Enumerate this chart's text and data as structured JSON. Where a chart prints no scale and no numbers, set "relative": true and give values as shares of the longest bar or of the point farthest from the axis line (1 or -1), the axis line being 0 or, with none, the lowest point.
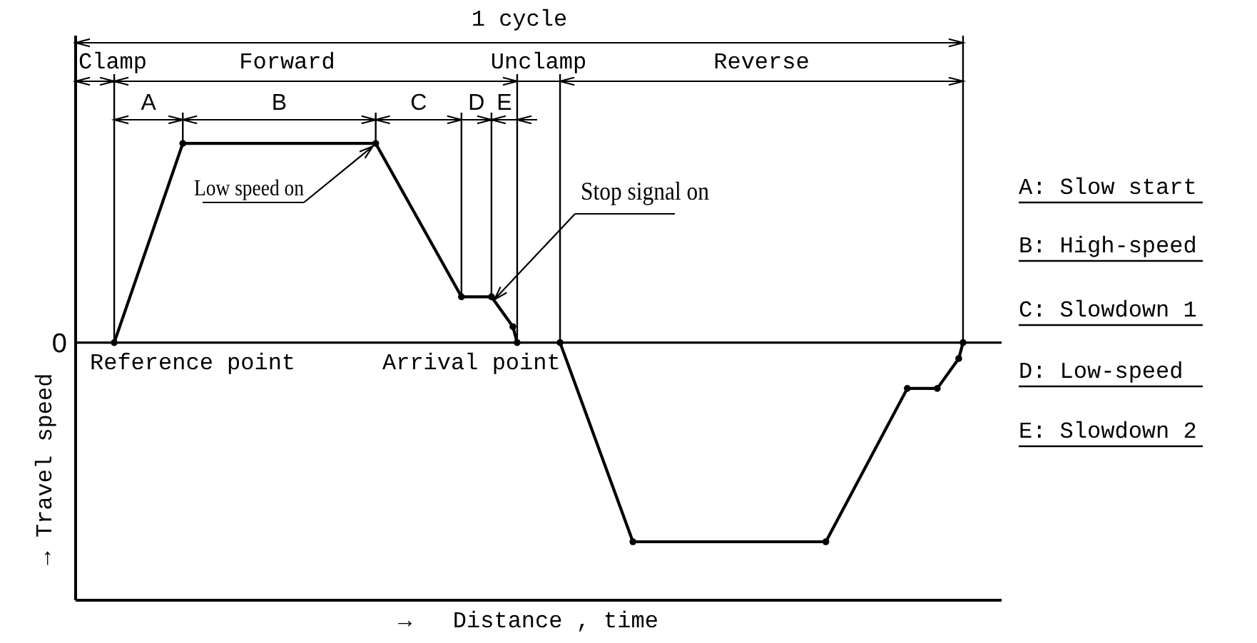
{
  "chart_data": {
    "type": "line",
    "relative": true,
    "marker": "circle",
    "line_style": "solid",
    "xlabel": "→   Distance , time",
    "ylabel": "→ Travel speed",
    "categories": [
      null,
      null,
      null,
      null,
      null,
      null,
      null,
      null,
      null,
      null,
      null,
      null,
      null,
      null,
      null,
      null,
      null,
      null,
      null,
      null,
      null,
      null,
      null,
      null,
      null,
      null,
      null,
      null,
      null,
      null,
      null,
      null,
      null,
      null,
      null,
      null,
      null,
      null,
      null,
      null,
      null,
      null,
      null,
      null,
      null,
      null,
      null,
      null,
      null,
      null,
      null,
      null,
      null,
      null,
      null,
      null,
      null,
      null,
      null,
      null,
      null,
      null,
      null,
      null,
      null,
      null,
      null,
      null,
      null,
      null,
      null,
      null,
      null,
      null,
      null,
      null,
      null,
      null,
      null,
      null,
      null,
      null,
      null,
      null,
      null,
      null,
      null,
      null,
      null,
      null,
      null,
      null,
      null,
      null,
      null,
      null,
      null,
      null,
      null,
      null,
      null,
      null,
      null,
      null,
      null,
      null,
      null,
      null,
      null,
      null,
      null,
      null,
      null,
      null,
      null,
      null,
      null,
      null,
      null,
      null,
      null,
      null,
      null,
      null,
      null,
      null,
      null,
      null,
      null,
      null,
      null,
      null,
      null,
      null,
      null,
      null,
      null,
      null,
      null,
      null,
      null,
      null,
      null,
      null,
      null,
      null,
      null,
      null,
      null,
      null,
      null,
      null,
      null,
      null,
      null,
      null,
      null,
      null,
      null,
      null,
      null,
      null,
      null,
      null,
      null,
      null,
      null,
      null,
      null,
      null,
      null,
      null,
      null,
      null,
      null,
      null,
      null,
      null,
      null,
      null,
      null,
      null,
      null,
      null,
      null,
      null,
      null,
      null,
      null,
      null,
      null,
      null,
      null,
      null,
      null,
      null,
      null,
      null,
      null,
      null,
      null,
      null,
      null,
      null,
      null,
      null,
      null,
      null,
      null,
      null,
      null,
      null,
      null,
      null,
      null,
      null,
      null
    ],
    "series": [
      {
        "color": "#000000",
        "values": [
          null,
          null,
          null,
          null,
          null,
          null,
          null,
          null,
          null,
          0,
          null,
          null,
          null,
          null,
          null,
          null,
          null,
          null,
          null,
          null,
          null,
          null,
          null,
          null,
          null,
          1,
          null,
          null,
          null,
          null,
          null,
          null,
          null,
          null,
          null,
          null,
          null,
          null,
          null,
          null,
          null,
          null,
          null,
          null,
          null,
          null,
          null,
          null,
          null,
          null,
          null,
          null,
          null,
          null,
          null,
          null,
          null,
          null,
          null,
          null,
          null,
          null,
          null,
          null,
          null,
          null,
          null,
          null,
          null,
          null,
          1,
          null,
          null,
          null,
          null,
          null,
          null,
          null,
          null,
          null,
          null,
          null,
          null,
          null,
          null,
          null,
          null,
          null,
          null,
          null,
          0.23,
          null,
          null,
          null,
          null,
          null,
          null,
          0.23,
          null,
          null,
          null,
          null,
          0.08,
          0,
          null,
          null,
          null,
          null,
          null,
          null,
          null,
          null,
          null,
          null,
          null,
          null,
          null,
          null,
          null,
          null,
          null,
          null,
          null,
          null,
          null,
          null,
          null,
          null,
          null,
          null,
          null,
          null,
          null,
          null,
          null,
          null,
          null,
          null,
          null,
          null,
          null,
          null,
          null,
          null,
          null,
          null,
          null,
          null,
          null,
          null,
          null,
          null,
          null,
          null,
          null,
          null,
          null,
          null,
          null,
          null,
          null,
          null,
          null,
          null,
          null,
          null,
          null,
          null,
          null,
          null,
          null,
          null,
          null,
          null,
          null,
          null,
          null,
          null,
          null,
          null,
          null,
          null,
          null,
          null,
          null,
          null,
          null,
          null,
          null,
          null,
          null,
          null,
          null,
          null,
          null,
          null,
          null,
          null,
          null,
          null,
          null,
          null,
          null,
          null,
          null,
          null,
          null,
          null,
          null,
          null,
          null,
          null,
          null,
          null,
          null,
          null,
          null
        ]
      },
      {
        "color": "#000000",
        "values": [
          null,
          null,
          null,
          null,
          null,
          null,
          null,
          null,
          null,
          null,
          null,
          null,
          null,
          null,
          null,
          null,
          null,
          null,
          null,
          null,
          null,
          null,
          null,
          null,
          null,
          null,
          null,
          null,
          null,
          null,
          null,
          null,
          null,
          null,
          null,
          null,
          null,
          null,
          null,
          null,
          null,
          null,
          null,
          null,
          null,
          null,
          null,
          null,
          null,
          null,
          null,
          null,
          null,
          null,
          null,
          null,
          null,
          null,
          null,
          null,
          null,
          null,
          null,
          null,
          null,
          null,
          null,
          null,
          null,
          null,
          null,
          null,
          null,
          null,
          null,
          null,
          null,
          null,
          null,
          null,
          null,
          null,
          null,
          null,
          null,
          null,
          null,
          null,
          null,
          null,
          null,
          null,
          null,
          null,
          null,
          null,
          null,
          null,
          null,
          null,
          null,
          null,
          null,
          null,
          null,
          null,
          null,
          null,
          null,
          null,
          null,
          null,
          null,
          0,
          null,
          null,
          null,
          null,
          null,
          null,
          null,
          null,
          null,
          null,
          null,
          null,
          null,
          null,
          null,
          null,
          -1,
          null,
          null,
          null,
          null,
          null,
          null,
          null,
          null,
          null,
          null,
          null,
          null,
          null,
          null,
          null,
          null,
          null,
          null,
          null,
          null,
          null,
          null,
          null,
          null,
          null,
          null,
          null,
          null,
          null,
          null,
          null,
          null,
          null,
          null,
          null,
          null,
          null,
          null,
          null,
          null,
          null,
          null,
          null,
          null,
          -1,
          null,
          null,
          null,
          null,
          null,
          null,
          null,
          null,
          null,
          null,
          null,
          null,
          null,
          null,
          null,
          null,
          null,
          null,
          -0.23,
          null,
          null,
          null,
          null,
          null,
          null,
          -0.23,
          null,
          null,
          null,
          null,
          -0.08,
          0,
          null,
          null,
          null,
          null,
          null,
          null,
          null,
          null,
          null
        ]
      }
    ],
    "ref_lines": [
      {
        "axis": "y",
        "value": 0,
        "label": "0"
      }
    ],
    "annotations": [
      "1 cycle",
      "Clamp",
      "Forward",
      "Unclamp",
      "Reverse",
      "A",
      "B",
      "C",
      "D",
      "E",
      "Low speed on",
      "Stop signal on",
      "Reference point",
      "Arrival point",
      "A: Slow start",
      "B: High-speed",
      "C: Slowdown 1",
      "D: Low-speed",
      "E: Slowdown 2"
    ]
  }
}
